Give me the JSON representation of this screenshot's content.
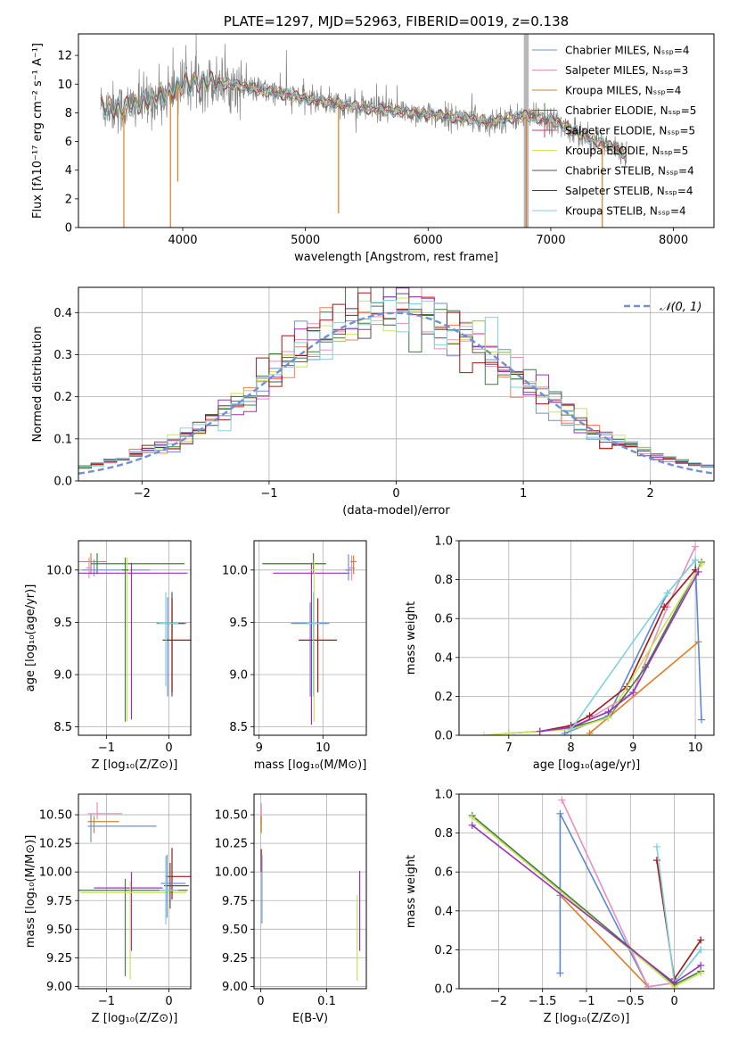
{
  "chart_data": [
    {
      "id": "spectrum",
      "type": "line",
      "title": "PLATE=1297, MJD=52963, FIBERID=0019, z=0.138",
      "xlabel": "wavelength [Angstrom, rest frame]",
      "ylabel": "Flux [fλ10⁻¹⁷ erg cm⁻² s⁻¹ A⁻¹]",
      "xlim": [
        3150,
        8330
      ],
      "ylim": [
        0,
        13.5
      ],
      "xticks": [
        4000,
        5000,
        6000,
        7000,
        8000
      ],
      "yticks": [
        0,
        2,
        4,
        6,
        8,
        10,
        12
      ],
      "grid": false,
      "legend_position": "top-right",
      "series": [
        {
          "name": "Chabrier MILES, Nₛₛₚ=4",
          "color": "#6f8fd6"
        },
        {
          "name": "Salpeter MILES, Nₛₛₚ=3",
          "color": "#e88fbf"
        },
        {
          "name": "Kroupa MILES, Nₛₛₚ=4",
          "color": "#c7872a"
        },
        {
          "name": "Chabrier ELODIE, Nₛₛₚ=5",
          "color": "#3f7f3f"
        },
        {
          "name": "Salpeter ELODIE, Nₛₛₚ=5",
          "color": "#c83a6e"
        },
        {
          "name": "Kroupa ELODIE, Nₛₛₚ=5",
          "color": "#cfe05a"
        },
        {
          "name": "Chabrier STELIB, Nₛₛₚ=4",
          "color": "#555555"
        },
        {
          "name": "Salpeter STELIB, Nₛₛₚ=4",
          "color": "#a01818"
        },
        {
          "name": "Kroupa STELIB, Nₛₛₚ=4",
          "color": "#7fd3dc"
        }
      ],
      "data_color": "#808080",
      "continuum": {
        "x": [
          3350,
          3500,
          3700,
          3900,
          4000,
          4200,
          4500,
          5000,
          5500,
          6000,
          6500,
          6800,
          7000,
          7300,
          7600
        ],
        "y": [
          8.5,
          8.3,
          8.8,
          9.4,
          10.0,
          10.2,
          9.8,
          9.0,
          8.3,
          7.9,
          7.4,
          7.8,
          7.5,
          6.3,
          5.2
        ]
      }
    },
    {
      "id": "residuals",
      "type": "histogram",
      "xlabel": "(data-model)/error",
      "ylabel": "Normed distribution",
      "xlim": [
        -2.5,
        2.5
      ],
      "ylim": [
        0,
        0.46
      ],
      "xticks": [
        -2,
        -1,
        0,
        1,
        2
      ],
      "yticks": [
        0.0,
        0.1,
        0.2,
        0.3,
        0.4
      ],
      "grid": true,
      "legend_position": "top-right",
      "legend_label": "𝒩(0, 1)",
      "reference_curve": {
        "name": "N(0,1)",
        "color": "#6f8fd6",
        "style": "dashed"
      },
      "bin_width": 0.1,
      "series_colors": [
        "#6f8fd6",
        "#e88fbf",
        "#f08050",
        "#3f7f3f",
        "#9b30c0",
        "#cfe05a",
        "#555555",
        "#a01818",
        "#7fd3dc"
      ]
    },
    {
      "id": "age-vs-z",
      "type": "scatter",
      "xlabel": "Z [log₁₀(Z/Z⊙)]",
      "ylabel": "age  [log₁₀(age/yr)]",
      "xlim": [
        -1.45,
        0.35
      ],
      "ylim": [
        8.42,
        10.28
      ],
      "xticks": [
        -1,
        0
      ],
      "yticks": [
        8.5,
        9.0,
        9.5,
        10.0
      ],
      "grid": true,
      "points": [
        {
          "x": -1.25,
          "y": 10.08,
          "xerr": [
            0.2,
            0.25
          ],
          "yerr": [
            0.12,
            0.08
          ],
          "color": "#c7872a"
        },
        {
          "x": -1.15,
          "y": 10.06,
          "xerr": [
            0.1,
            1.4
          ],
          "yerr": [
            0.1,
            0.1
          ],
          "color": "#3f7f3f"
        },
        {
          "x": -1.2,
          "y": 10.0,
          "xerr": [
            0.2,
            0.9
          ],
          "yerr": [
            0.06,
            0.1
          ],
          "color": "#6f8fd6"
        },
        {
          "x": -1.28,
          "y": 10.02,
          "xerr": [
            0.05,
            0.05
          ],
          "yerr": [
            0.1,
            0.1
          ],
          "color": "#e88fbf"
        },
        {
          "x": -0.6,
          "y": 9.97,
          "xerr": [
            0.9,
            0.9
          ],
          "yerr": [
            1.4,
            0.1
          ],
          "color": "#9b30c0"
        },
        {
          "x": -0.67,
          "y": 10.0,
          "xerr": [
            0.05,
            0.05
          ],
          "yerr": [
            1.45,
            0.12
          ],
          "color": "#cfe05a"
        },
        {
          "x": -0.7,
          "y": 10.0,
          "xerr": [
            0.05,
            0.05
          ],
          "yerr": [
            1.45,
            0.12
          ],
          "color": "#3f7f3f"
        },
        {
          "x": -0.02,
          "y": 9.49,
          "xerr": [
            0.18,
            0.3
          ],
          "yerr": [
            0.7,
            0.25
          ],
          "color": "#6f8fd6"
        },
        {
          "x": 0.05,
          "y": 9.49,
          "xerr": [
            0.1,
            0.2
          ],
          "yerr": [
            0.7,
            0.3
          ],
          "color": "#555555"
        },
        {
          "x": 0.05,
          "y": 9.33,
          "xerr": [
            0.15,
            0.3
          ],
          "yerr": [
            0.5,
            0.4
          ],
          "color": "#a01818"
        },
        {
          "x": -0.05,
          "y": 9.49,
          "xerr": [
            0.1,
            0.2
          ],
          "yerr": [
            0.6,
            0.3
          ],
          "color": "#7fd3dc"
        }
      ]
    },
    {
      "id": "age-vs-mass",
      "type": "scatter",
      "xlabel": "mass [log₁₀(M/M⊙)]",
      "ylabel": "",
      "xlim": [
        8.92,
        10.68
      ],
      "ylim": [
        8.42,
        10.28
      ],
      "xticks": [
        9,
        10
      ],
      "yticks": [
        8.5,
        9.0,
        9.5,
        10.0
      ],
      "grid": true,
      "points": [
        {
          "x": 9.85,
          "y": 10.06,
          "xerr": [
            0.8,
            0.2
          ],
          "yerr": [
            0.1,
            0.1
          ],
          "color": "#cfe05a"
        },
        {
          "x": 9.85,
          "y": 10.06,
          "xerr": [
            0.8,
            0.2
          ],
          "yerr": [
            0.1,
            0.1
          ],
          "color": "#3f7f3f"
        },
        {
          "x": 9.82,
          "y": 9.97,
          "xerr": [
            0.6,
            0.6
          ],
          "yerr": [
            1.45,
            0.1
          ],
          "color": "#9b30c0"
        },
        {
          "x": 9.86,
          "y": 10.0,
          "xerr": [
            0.05,
            0.05
          ],
          "yerr": [
            1.45,
            0.1
          ],
          "color": "#cfe05a"
        },
        {
          "x": 9.8,
          "y": 9.49,
          "xerr": [
            0.3,
            0.3
          ],
          "yerr": [
            0.7,
            0.2
          ],
          "color": "#6f8fd6"
        },
        {
          "x": 9.92,
          "y": 9.33,
          "xerr": [
            0.3,
            0.3
          ],
          "yerr": [
            0.5,
            0.4
          ],
          "color": "#a01818"
        },
        {
          "x": 9.85,
          "y": 9.49,
          "xerr": [
            0.1,
            0.1
          ],
          "yerr": [
            0.7,
            0.3
          ],
          "color": "#7fd3dc"
        },
        {
          "x": 10.4,
          "y": 10.0,
          "xerr": [
            0.05,
            0.05
          ],
          "yerr": [
            0.1,
            0.15
          ],
          "color": "#6f8fd6"
        },
        {
          "x": 10.45,
          "y": 10.02,
          "xerr": [
            0.05,
            0.05
          ],
          "yerr": [
            0.12,
            0.12
          ],
          "color": "#e88fbf"
        },
        {
          "x": 10.48,
          "y": 10.08,
          "xerr": [
            0.05,
            0.05
          ],
          "yerr": [
            0.12,
            0.06
          ],
          "color": "#c7872a"
        }
      ]
    },
    {
      "id": "weight-vs-age",
      "type": "line",
      "xlabel": "age  [log₁₀(age/yr)]",
      "ylabel": "mass weight",
      "xlim": [
        6.2,
        10.3
      ],
      "ylim": [
        0,
        1.0
      ],
      "xticks": [
        7,
        8,
        9,
        10
      ],
      "yticks": [
        0.0,
        0.2,
        0.4,
        0.6,
        0.8,
        1.0
      ],
      "grid": true,
      "series": [
        {
          "name": "Kroupa MILES",
          "color": "#e07b24",
          "x": [
            8.3,
            10.05
          ],
          "y": [
            0.01,
            0.48
          ]
        },
        {
          "name": "Chabrier MILES",
          "color": "#5b87d8",
          "x": [
            7.9,
            8.6,
            9.55,
            10.0,
            10.1
          ],
          "y": [
            0.01,
            0.1,
            0.73,
            0.9,
            0.08
          ]
        },
        {
          "name": "Salpeter MILES",
          "color": "#e88fbf",
          "x": [
            8.0,
            9.0,
            9.55,
            10.0
          ],
          "y": [
            0.03,
            0.22,
            0.66,
            0.97
          ]
        },
        {
          "name": "Salpeter STELIB",
          "color": "#a01818",
          "x": [
            7.5,
            8.0,
            8.3,
            8.9,
            9.5,
            10.0
          ],
          "y": [
            0.02,
            0.05,
            0.1,
            0.25,
            0.66,
            0.85
          ]
        },
        {
          "name": "Chabrier ELODIE",
          "color": "#3f7f3f",
          "x": [
            7.0,
            7.5,
            8.0,
            8.6,
            9.2,
            10.1
          ],
          "y": [
            0.01,
            0.02,
            0.04,
            0.09,
            0.35,
            0.89
          ]
        },
        {
          "name": "Kroupa ELODIE",
          "color": "#cfe05a",
          "x": [
            6.6,
            7.0,
            7.5,
            8.0,
            8.6,
            10.1
          ],
          "y": [
            0.0,
            0.01,
            0.02,
            0.03,
            0.09,
            0.88
          ]
        },
        {
          "name": "Salpeter ELODIE",
          "color": "#9b30c0",
          "x": [
            7.5,
            8.0,
            8.6,
            9.0,
            10.05
          ],
          "y": [
            0.02,
            0.04,
            0.12,
            0.22,
            0.84
          ]
        },
        {
          "name": "Kroupa STELIB",
          "color": "#7fd3dc",
          "x": [
            8.0,
            9.55,
            10.0
          ],
          "y": [
            0.03,
            0.73,
            0.9
          ]
        }
      ]
    },
    {
      "id": "mass-vs-z",
      "type": "scatter",
      "xlabel": "Z [log₁₀(Z/Z⊙)]",
      "ylabel": "mass [log₁₀(M/M⊙)]",
      "xlim": [
        -1.45,
        0.35
      ],
      "ylim": [
        8.98,
        10.68
      ],
      "xticks": [
        -1,
        0
      ],
      "yticks": [
        9.0,
        9.25,
        9.5,
        9.75,
        10.0,
        10.25,
        10.5
      ],
      "grid": true,
      "points": [
        {
          "x": -1.15,
          "y": 10.51,
          "xerr": [
            0.15,
            0.4
          ],
          "yerr": [
            0.05,
            0.1
          ],
          "color": "#e88fbf"
        },
        {
          "x": -1.2,
          "y": 10.44,
          "xerr": [
            0.1,
            0.4
          ],
          "yerr": [
            0.1,
            0.05
          ],
          "color": "#c7872a"
        },
        {
          "x": -1.25,
          "y": 10.4,
          "xerr": [
            0.05,
            1.05
          ],
          "yerr": [
            0.14,
            0.1
          ],
          "color": "#6f8fd6"
        },
        {
          "x": -0.6,
          "y": 9.86,
          "xerr": [
            0.6,
            0.5
          ],
          "yerr": [
            0.55,
            0.14
          ],
          "color": "#9b30c0"
        },
        {
          "x": -0.7,
          "y": 9.84,
          "xerr": [
            0.8,
            1.0
          ],
          "yerr": [
            0.75,
            0.1
          ],
          "color": "#3f7f3f"
        },
        {
          "x": -0.62,
          "y": 9.82,
          "xerr": [
            0.8,
            0.9
          ],
          "yerr": [
            0.76,
            0.1
          ],
          "color": "#cfe05a"
        },
        {
          "x": 0.05,
          "y": 9.96,
          "xerr": [
            0.1,
            0.3
          ],
          "yerr": [
            0.2,
            0.25
          ],
          "color": "#a01818"
        },
        {
          "x": -0.03,
          "y": 9.9,
          "xerr": [
            0.1,
            0.3
          ],
          "yerr": [
            0.3,
            0.25
          ],
          "color": "#6f8fd6"
        },
        {
          "x": 0.02,
          "y": 9.88,
          "xerr": [
            0.1,
            0.3
          ],
          "yerr": [
            0.2,
            0.2
          ],
          "color": "#555555"
        },
        {
          "x": -0.05,
          "y": 9.84,
          "xerr": [
            0.1,
            0.2
          ],
          "yerr": [
            0.3,
            0.3
          ],
          "color": "#7fd3dc"
        }
      ]
    },
    {
      "id": "mass-vs-ebv",
      "type": "scatter",
      "xlabel": "E(B-V)",
      "ylabel": "",
      "xlim": [
        -0.01,
        0.16
      ],
      "ylim": [
        8.98,
        10.68
      ],
      "xticks": [
        0.0,
        0.1
      ],
      "yticks": [
        9.0,
        9.25,
        9.5,
        9.75,
        10.0,
        10.25,
        10.5
      ],
      "grid": true,
      "points": [
        {
          "x": 0.001,
          "y": 10.5,
          "xerr": [
            0,
            0
          ],
          "yerr": [
            0.1,
            0.1
          ],
          "color": "#e88fbf"
        },
        {
          "x": 0.001,
          "y": 10.44,
          "xerr": [
            0,
            0
          ],
          "yerr": [
            0.1,
            0.05
          ],
          "color": "#c7872a"
        },
        {
          "x": 0.001,
          "y": 10.1,
          "xerr": [
            0,
            0
          ],
          "yerr": [
            0.1,
            0.1
          ],
          "color": "#a01818"
        },
        {
          "x": 0.002,
          "y": 9.85,
          "xerr": [
            0,
            0
          ],
          "yerr": [
            0.3,
            0.3
          ],
          "color": "#6f8fd6"
        },
        {
          "x": 0.146,
          "y": 9.5,
          "xerr": [
            0,
            0
          ],
          "yerr": [
            0.45,
            0.3
          ],
          "color": "#cfe05a"
        },
        {
          "x": 0.15,
          "y": 9.66,
          "xerr": [
            0,
            0
          ],
          "yerr": [
            0.35,
            0.35
          ],
          "color": "#9b30c0"
        }
      ]
    },
    {
      "id": "weight-vs-z",
      "type": "line",
      "xlabel": "Z [log₁₀(Z/Z⊙)]",
      "ylabel": "mass weight",
      "xlim": [
        -2.45,
        0.45
      ],
      "ylim": [
        0,
        1.0
      ],
      "xticks": [
        -2.0,
        -1.5,
        -1.0,
        -0.5,
        0.0
      ],
      "yticks": [
        0.0,
        0.2,
        0.4,
        0.6,
        0.8,
        1.0
      ],
      "grid": true,
      "series": [
        {
          "name": "Kroupa MILES",
          "color": "#e07b24",
          "x": [
            -1.3,
            -0.3
          ],
          "y": [
            0.48,
            0.01
          ]
        },
        {
          "name": "Chabrier MILES",
          "color": "#5b87d8",
          "x": [
            -1.3,
            -1.3,
            -0.3,
            0.0,
            0.3
          ],
          "y": [
            0.08,
            0.9,
            0.01,
            0.03,
            0.2
          ]
        },
        {
          "name": "Salpeter MILES",
          "color": "#e88fbf",
          "x": [
            -1.28,
            -0.3,
            0.0
          ],
          "y": [
            0.97,
            0.01,
            0.03
          ]
        },
        {
          "name": "Salpeter STELIB",
          "color": "#a01818",
          "x": [
            -0.2,
            0.0,
            0.3
          ],
          "y": [
            0.66,
            0.05,
            0.25
          ]
        },
        {
          "name": "Kroupa STELIB",
          "color": "#7fd3dc",
          "x": [
            -0.2,
            0.0,
            0.3
          ],
          "y": [
            0.73,
            0.03,
            0.2
          ]
        },
        {
          "name": "Chabrier ELODIE",
          "color": "#3f7f3f",
          "x": [
            -2.3,
            0.0,
            0.3
          ],
          "y": [
            0.89,
            0.02,
            0.09
          ]
        },
        {
          "name": "Kroupa ELODIE",
          "color": "#cfe05a",
          "x": [
            -2.3,
            0.0,
            0.3
          ],
          "y": [
            0.88,
            0.01,
            0.08
          ]
        },
        {
          "name": "Salpeter ELODIE",
          "color": "#9b30c0",
          "x": [
            -2.3,
            0.0,
            0.3
          ],
          "y": [
            0.84,
            0.03,
            0.12
          ]
        }
      ]
    }
  ]
}
